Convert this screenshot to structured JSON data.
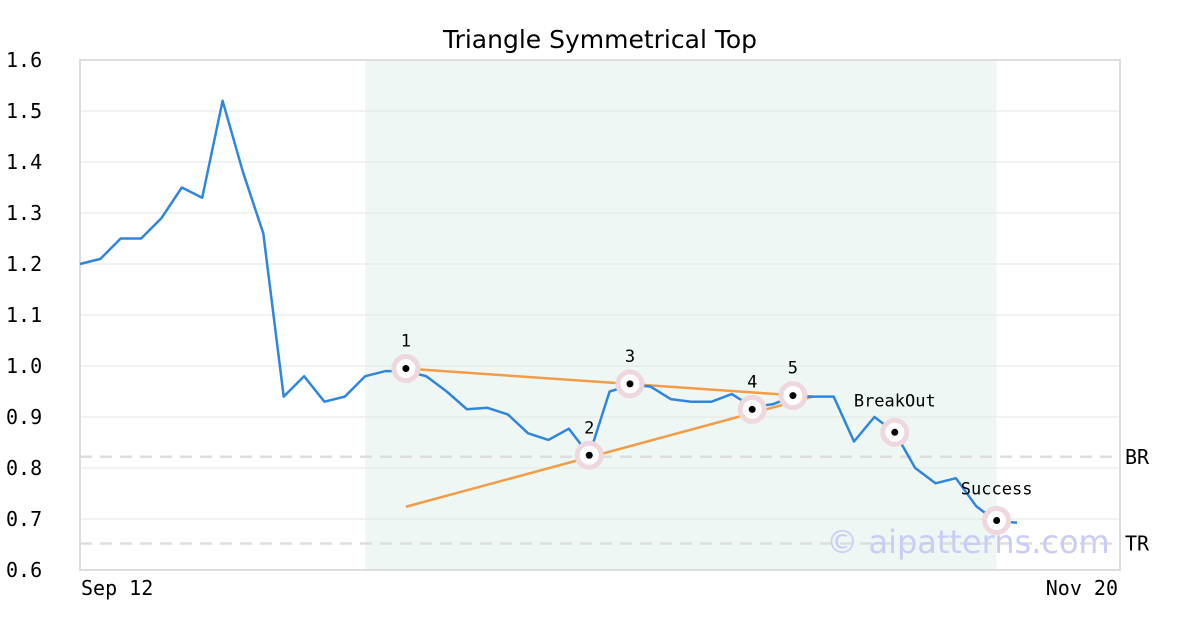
{
  "chart_data": {
    "type": "line",
    "title": "Triangle Symmetrical Top",
    "xlabel": "",
    "ylabel": "",
    "ylim": [
      0.6,
      1.6
    ],
    "y_ticks": [
      "1.6",
      "1.5",
      "1.4",
      "1.3",
      "1.2",
      "1.1",
      "1.0",
      "0.9",
      "0.8",
      "0.7",
      "0.6"
    ],
    "x_tick_labels": [
      "Sep 12",
      "Nov 20"
    ],
    "grid": true,
    "line_color": "#2e86de",
    "trend_color": "#f39c45",
    "zone_color": "#eef7f3",
    "price": [
      1.2,
      1.21,
      1.25,
      1.25,
      1.29,
      1.35,
      1.33,
      1.52,
      1.38,
      1.26,
      0.94,
      0.98,
      0.93,
      0.94,
      0.98,
      0.99,
      0.99,
      0.98,
      0.95,
      0.915,
      0.918,
      0.905,
      0.868,
      0.855,
      0.877,
      0.825,
      0.95,
      0.962,
      0.96,
      0.935,
      0.93,
      0.93,
      0.945,
      0.92,
      0.925,
      0.94,
      0.94,
      0.94,
      0.852,
      0.9,
      0.87,
      0.8,
      0.77,
      0.78,
      0.725,
      0.695,
      0.693
    ],
    "pattern_zone": {
      "start_index": 14,
      "end_index": 45
    },
    "points": [
      {
        "label": "1",
        "index": 16,
        "value": 0.995
      },
      {
        "label": "2",
        "index": 25,
        "value": 0.825
      },
      {
        "label": "3",
        "index": 27,
        "value": 0.965
      },
      {
        "label": "4",
        "index": 33,
        "value": 0.915
      },
      {
        "label": "5",
        "index": 35,
        "value": 0.942
      },
      {
        "label": "BreakOut",
        "index": 40,
        "value": 0.87
      },
      {
        "label": "Success",
        "index": 45,
        "value": 0.697
      }
    ],
    "trendlines": [
      {
        "from": [
          16,
          0.995
        ],
        "to": [
          36,
          0.94
        ]
      },
      {
        "from": [
          16,
          0.724
        ],
        "to": [
          36,
          0.94
        ]
      }
    ],
    "reference_lines": [
      {
        "label": "BR",
        "value": 0.822
      },
      {
        "label": "TR",
        "value": 0.652
      }
    ],
    "watermark": "© aipatterns.com"
  }
}
